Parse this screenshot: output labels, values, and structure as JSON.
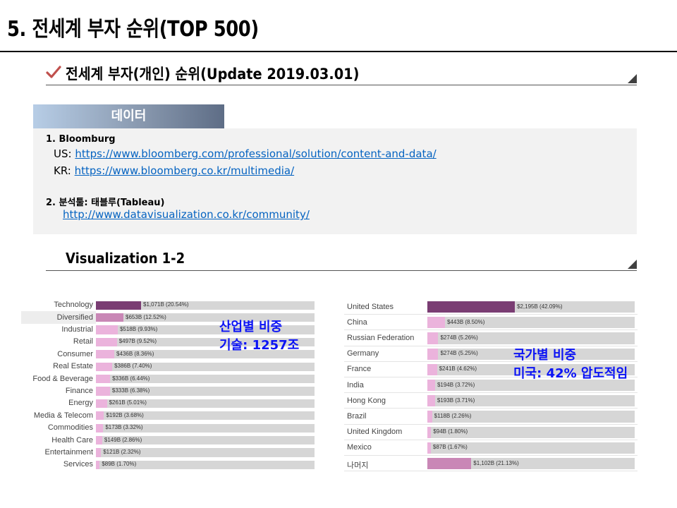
{
  "page": {
    "title": "5. 전세계 부자 순위(TOP 500)"
  },
  "section1": {
    "title": "전세계 부자(개인) 순위(Update 2019.03.01)"
  },
  "data_source": {
    "tab_label": "데이터",
    "item1_title": "1. Bloomburg",
    "us_prefix": "US: ",
    "us_url": "https://www.bloomberg.com/professional/solution/content-and-data/",
    "kr_prefix": "KR: ",
    "kr_url": "https://www.bloomberg.co.kr/multimedia/",
    "item2_title": "2. 분석툴: 태블루(Tableau)",
    "item2_url": "http://www.datavisualization.co.kr/community/"
  },
  "section2": {
    "title": "Visualization  1-2"
  },
  "annotations": {
    "industry_line1": "산업별 비중",
    "industry_line2": "기술: 1257조",
    "country_line1": "국가별 비중",
    "country_line2": "미국: 42% 압도적임"
  },
  "colors": {
    "dark_bar": "#7a3d73",
    "mid_bar": "#c987b6",
    "light_bar": "#ebb3dc",
    "track": "#d6d6d6",
    "annotation": "#0b13f5"
  },
  "chart_data": [
    {
      "type": "bar",
      "orientation": "horizontal",
      "categories": [
        "Technology",
        "Diversified",
        "Industrial",
        "Retail",
        "Consumer",
        "Real Estate",
        "Food & Beverage",
        "Finance",
        "Energy",
        "Media & Telecom",
        "Commodities",
        "Health Care",
        "Entertainment",
        "Services"
      ],
      "values": [
        1071,
        653,
        518,
        497,
        436,
        386,
        336,
        333,
        261,
        192,
        173,
        149,
        121,
        89
      ],
      "value_labels": [
        "$1,071B (20.54%)",
        "$653B (12.52%)",
        "$518B (9.93%)",
        "$497B (9.52%)",
        "$436B (8.36%)",
        "$386B (7.40%)",
        "$336B (6.44%)",
        "$333B (6.38%)",
        "$261B (5.01%)",
        "$192B (3.68%)",
        "$173B (3.32%)",
        "$149B (2.86%)",
        "$121B (2.32%)",
        "$89B (1.70%)"
      ],
      "highlighted": "Diversified"
    },
    {
      "type": "bar",
      "orientation": "horizontal",
      "categories": [
        "United States",
        "China",
        "Russian Federation",
        "Germany",
        "France",
        "India",
        "Hong Kong",
        "Brazil",
        "United Kingdom",
        "Mexico",
        "나머지"
      ],
      "values": [
        2195,
        443,
        274,
        274,
        241,
        194,
        193,
        118,
        94,
        87,
        1102
      ],
      "value_labels": [
        "$2,195B (42.09%)",
        "$443B (8.50%)",
        "$274B (5.26%)",
        "$274B (5.25%)",
        "$241B (4.62%)",
        "$194B (3.72%)",
        "$193B (3.71%)",
        "$118B (2.26%)",
        "$94B (1.80%)",
        "$87B (1.67%)",
        "$1,102B (21.13%)"
      ]
    }
  ]
}
